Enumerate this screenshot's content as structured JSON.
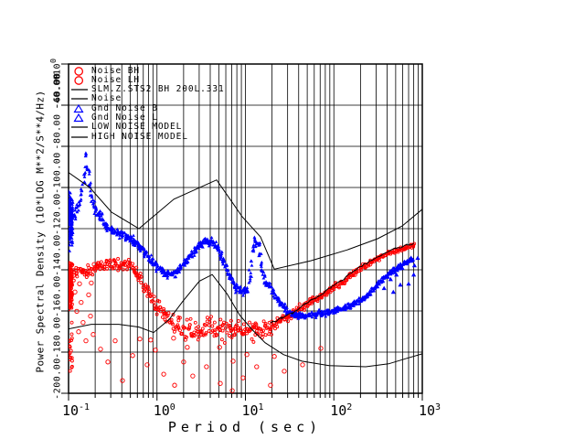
{
  "figure": {
    "background": "#ffffff",
    "kind": "seismic-noise-psd-plot"
  },
  "colors": {
    "station_noise": "#ff0000",
    "ground_noise": "#0000ff",
    "model_lines": "#000000",
    "grid": "#000000",
    "text": "#000000"
  },
  "legend": {
    "items": [
      {
        "symbol": "circle",
        "color": "#ff0000",
        "label": "Noise BH"
      },
      {
        "symbol": "circle",
        "color": "#ff0000",
        "label": "Noise LH"
      },
      {
        "symbol": "line",
        "color": "#000000",
        "label": "SLM.Z.STS2 BH  200L.331"
      },
      {
        "symbol": "line",
        "color": "#000000",
        "label": "Noise"
      },
      {
        "symbol": "triangle",
        "color": "#0000ff",
        "label": "Gnd Noise B"
      },
      {
        "symbol": "triangle",
        "color": "#0000ff",
        "label": "Gnd Noise L"
      },
      {
        "symbol": "line",
        "color": "#000000",
        "label": "LOW NOISE MODEL"
      },
      {
        "symbol": "line",
        "color": "#000000",
        "label": "HIGH NOISE MODEL"
      }
    ]
  },
  "axes": {
    "x": {
      "label": "Period (sec)",
      "scale": "log",
      "tick_base": "10",
      "tick_exponents": [
        -1,
        0,
        1,
        2,
        3
      ]
    },
    "y": {
      "label": "Power Spectral Density (10*LOG M**2/S**4/Hz)",
      "scale_prefix": "*10",
      "scale_exponent": "0",
      "ticks": [
        "-40.00",
        "-60.00",
        "-80.00",
        "-100.00",
        "-120.00",
        "-140.00",
        "-160.00",
        "-180.00",
        "-200.00"
      ],
      "tick_values": [
        -40,
        -60,
        -80,
        -100,
        -120,
        -140,
        -160,
        -180,
        -200
      ]
    }
  },
  "chart_data": {
    "type": "scatter",
    "title": "",
    "xlabel": "Period (sec)",
    "ylabel": "Power Spectral Density (10*LOG M**2/S**4/Hz)",
    "x_scale": "log",
    "xlim": [
      0.1,
      1000
    ],
    "ylim": [
      -200,
      -40
    ],
    "grid": {
      "x_minor_lines": true,
      "y_step_db": 20
    },
    "legend_position": "top-left-inside",
    "series": [
      {
        "name": "Noise BH/LH (SLM.Z.STS2)",
        "render": "scatter-band",
        "marker": "circle",
        "color": "#ff0000",
        "band": [
          [
            0.102,
            -141.9,
            12
          ],
          [
            0.204,
            -139.7,
            7
          ],
          [
            0.241,
            -137.9,
            7
          ],
          [
            0.292,
            -137.0,
            7
          ],
          [
            0.37,
            -137.4,
            7
          ],
          [
            0.469,
            -138.3,
            8
          ],
          [
            0.568,
            -141.0,
            8
          ],
          [
            0.687,
            -146.8,
            9
          ],
          [
            0.832,
            -152.2,
            10
          ],
          [
            1.01,
            -158.0,
            10
          ],
          [
            1.22,
            -162.5,
            11
          ],
          [
            1.54,
            -166.0,
            12
          ],
          [
            1.96,
            -168.7,
            13
          ],
          [
            2.61,
            -169.6,
            14
          ],
          [
            3.47,
            -168.7,
            14
          ],
          [
            4.62,
            -167.8,
            14
          ],
          [
            6.17,
            -169.2,
            14
          ],
          [
            8.2,
            -169.6,
            13
          ],
          [
            10.9,
            -168.7,
            12
          ],
          [
            14.4,
            -169.6,
            12
          ],
          [
            19.2,
            -167.4,
            10
          ],
          [
            25.6,
            -164.2,
            8
          ],
          [
            34.1,
            -161.6,
            6
          ],
          [
            47.5,
            -157.1,
            5
          ],
          [
            66.5,
            -154.0,
            4
          ],
          [
            92.9,
            -149.5,
            4
          ],
          [
            130,
            -145.5,
            4
          ],
          [
            181,
            -140.6,
            4
          ],
          [
            253,
            -137.0,
            3
          ],
          [
            350,
            -133.4,
            3
          ],
          [
            494,
            -130.7,
            3
          ],
          [
            668,
            -128.9,
            3
          ],
          [
            848,
            -128.0,
            3
          ]
        ],
        "left_column": {
          "period": [
            0.1,
            0.11
          ],
          "db": [
            -134,
            -163
          ],
          "n": 110
        },
        "left_column_tail": {
          "period": [
            0.1,
            0.11
          ],
          "db": [
            -163,
            -197
          ],
          "n": 18
        },
        "sparse_markers": [
          [
            0.113,
            -142.8
          ],
          [
            0.118,
            -150.8
          ],
          [
            0.124,
            -160.2
          ],
          [
            0.133,
            -146.8
          ],
          [
            0.139,
            -155.8
          ],
          [
            0.146,
            -165.6
          ],
          [
            0.161,
            -141.9
          ],
          [
            0.169,
            -152.2
          ],
          [
            0.177,
            -162.5
          ],
          [
            0.19,
            -171.4
          ],
          [
            0.13,
            -170.1
          ],
          [
            0.157,
            -174.5
          ],
          [
            0.181,
            -146.4
          ],
          [
            0.195,
            -137.4
          ]
        ],
        "outlier_markers": [
          [
            0.23,
            -178.6
          ],
          [
            0.278,
            -184.8
          ],
          [
            0.337,
            -174.5
          ],
          [
            0.407,
            -193.8
          ],
          [
            0.53,
            -181.7
          ],
          [
            0.64,
            -173.6
          ],
          [
            0.774,
            -186.2
          ],
          [
            0.96,
            -179.0
          ],
          [
            1.19,
            -190.7
          ],
          [
            1.58,
            -196.1
          ],
          [
            2.0,
            -184.8
          ],
          [
            2.54,
            -191.6
          ],
          [
            3.63,
            -187.1
          ],
          [
            5.2,
            -195.2
          ],
          [
            7.1,
            -198.7
          ],
          [
            9.4,
            -192.5
          ],
          [
            13.4,
            -187.1
          ],
          [
            19.2,
            -196.1
          ],
          [
            27.5,
            -189.3
          ],
          [
            44.3,
            -186.2
          ],
          [
            71.2,
            -178.2
          ],
          [
            5.1,
            -177.7
          ],
          [
            7.25,
            -184.4
          ],
          [
            10.4,
            -181.2
          ],
          [
            21.2,
            -182.1
          ],
          [
            2.2,
            -177.7
          ],
          [
            1.54,
            -173.2
          ],
          [
            0.85,
            -174.1
          ]
        ]
      },
      {
        "name": "Gnd Noise B/L",
        "render": "scatter-band",
        "marker": "triangle",
        "color": "#0000ff",
        "band": [
          [
            0.1,
            -112.8,
            7
          ],
          [
            0.113,
            -114.2,
            7
          ],
          [
            0.127,
            -109.7,
            7
          ],
          [
            0.143,
            -101.7,
            6
          ],
          [
            0.157,
            -90.5,
            5
          ],
          [
            0.161,
            -84.7,
            4
          ],
          [
            0.169,
            -92.7,
            5
          ],
          [
            0.181,
            -103.9,
            6
          ],
          [
            0.199,
            -110.6,
            7
          ],
          [
            0.23,
            -114.2,
            7
          ],
          [
            0.266,
            -118.7,
            6
          ],
          [
            0.321,
            -121.3,
            6
          ],
          [
            0.388,
            -122.7,
            6
          ],
          [
            0.492,
            -124.9,
            6
          ],
          [
            0.625,
            -128.5,
            6
          ],
          [
            0.793,
            -133.9,
            6
          ],
          [
            1.01,
            -138.8,
            6
          ],
          [
            1.22,
            -141.5,
            5
          ],
          [
            1.47,
            -142.3,
            5
          ],
          [
            1.77,
            -140.1,
            5
          ],
          [
            2.26,
            -134.7,
            5
          ],
          [
            2.87,
            -128.9,
            5
          ],
          [
            3.65,
            -125.8,
            5
          ],
          [
            4.3,
            -126.7,
            5
          ],
          [
            5.07,
            -131.2,
            5
          ],
          [
            6.17,
            -140.1,
            5
          ],
          [
            7.5,
            -147.7,
            5
          ],
          [
            9.13,
            -150.8,
            5
          ],
          [
            10.5,
            -149.5,
            4
          ],
          [
            11.4,
            -141.9,
            4
          ],
          [
            12.2,
            -130.7,
            4
          ],
          [
            13.1,
            -125.4,
            4
          ],
          [
            14.1,
            -127.6,
            4
          ],
          [
            15.1,
            -137.4,
            4
          ],
          [
            16.7,
            -146.4,
            4
          ],
          [
            18.8,
            -147.3,
            4
          ],
          [
            21.2,
            -151.7,
            4
          ],
          [
            25.6,
            -157.1,
            4
          ],
          [
            31,
            -160.7,
            4
          ],
          [
            39.3,
            -162.5,
            4
          ],
          [
            52.2,
            -162.0,
            4
          ],
          [
            72.9,
            -161.1,
            4
          ],
          [
            102,
            -159.8,
            4
          ],
          [
            142,
            -158.0,
            4
          ],
          [
            189,
            -155.3,
            4
          ],
          [
            240,
            -152.6,
            3
          ],
          [
            305,
            -147.7,
            3
          ],
          [
            388,
            -143.2,
            3
          ],
          [
            494,
            -139.7,
            3
          ],
          [
            628,
            -136.6,
            3
          ],
          [
            799,
            -134.8,
            3
          ]
        ],
        "left_column": {
          "period": [
            0.1,
            0.112
          ],
          "db": [
            -99,
            -131.6
          ],
          "n": 130
        },
        "sparse_markers": [
          [
            370,
            -149.0
          ],
          [
            438,
            -144.6
          ],
          [
            510,
            -142.4
          ],
          [
            594,
            -139.2
          ],
          [
            668,
            -137.0
          ],
          [
            745,
            -135.7
          ],
          [
            815,
            -137.9
          ],
          [
            888,
            -134.3
          ],
          [
            700,
            -146.8
          ],
          [
            799,
            -142.4
          ],
          [
            565,
            -147.3
          ],
          [
            470,
            -150.8
          ]
        ]
      },
      {
        "name": "Noise",
        "render": "jagged-line",
        "color": "#000000",
        "points": [
          [
            19.2,
            -166.0
          ],
          [
            25.6,
            -163.5
          ],
          [
            34.1,
            -161.0
          ],
          [
            47.5,
            -156.5
          ],
          [
            66.5,
            -153.0
          ],
          [
            92.9,
            -148.5
          ],
          [
            130,
            -144.5
          ],
          [
            181,
            -139.5
          ],
          [
            253,
            -136.0
          ],
          [
            350,
            -132.5
          ],
          [
            494,
            -129.8
          ],
          [
            668,
            -128.0
          ],
          [
            800,
            -127.2
          ]
        ]
      },
      {
        "name": "LOW NOISE MODEL",
        "render": "line",
        "color": "#000000",
        "points": [
          [
            0.1,
            -168.7
          ],
          [
            0.181,
            -166.5
          ],
          [
            0.37,
            -166.5
          ],
          [
            0.625,
            -167.8
          ],
          [
            0.915,
            -170.5
          ],
          [
            1.37,
            -164.2
          ],
          [
            1.96,
            -155.3
          ],
          [
            3.01,
            -145.5
          ],
          [
            4.22,
            -142.3
          ],
          [
            6.2,
            -151.7
          ],
          [
            8.6,
            -162.0
          ],
          [
            11.7,
            -168.7
          ],
          [
            16.7,
            -175.4
          ],
          [
            26.9,
            -181.2
          ],
          [
            43.5,
            -184.4
          ],
          [
            88.2,
            -186.6
          ],
          [
            229,
            -187.1
          ],
          [
            416,
            -185.7
          ],
          [
            668,
            -183.0
          ],
          [
            1000,
            -180.8
          ]
        ]
      },
      {
        "name": "HIGH NOISE MODEL",
        "render": "line",
        "color": "#000000",
        "points": [
          [
            0.1,
            -92.7
          ],
          [
            0.173,
            -99.9
          ],
          [
            0.306,
            -112.0
          ],
          [
            0.625,
            -120.0
          ],
          [
            1.55,
            -105.7
          ],
          [
            4.73,
            -96.3
          ],
          [
            9.2,
            -114.2
          ],
          [
            14.8,
            -124.0
          ],
          [
            21.2,
            -139.7
          ],
          [
            54.8,
            -135.6
          ],
          [
            142,
            -130.3
          ],
          [
            312,
            -124.9
          ],
          [
            593,
            -118.7
          ],
          [
            1000,
            -110.6
          ]
        ]
      }
    ]
  }
}
